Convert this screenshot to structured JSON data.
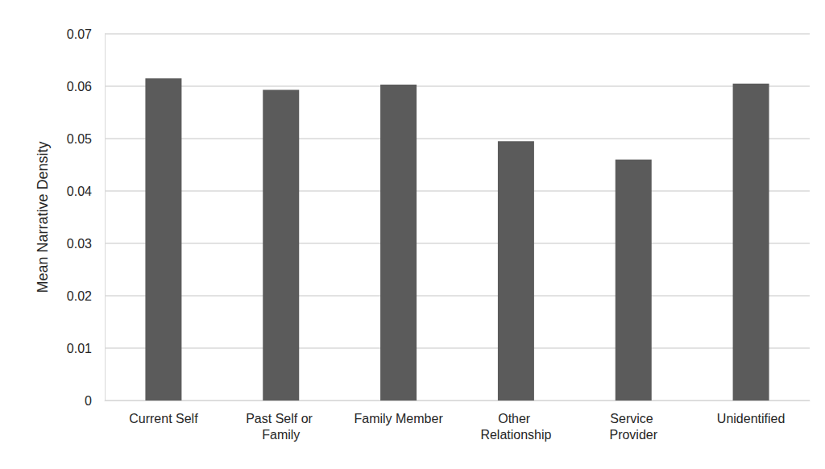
{
  "chart_data": {
    "type": "bar",
    "y_label": "Mean Narrative Density",
    "categories": [
      "Current Self",
      "Past Self or Family",
      "Family Member",
      "Other Relationship",
      "Service Provider",
      "Unidentified"
    ],
    "values": [
      0.0615,
      0.0593,
      0.0603,
      0.0495,
      0.046,
      0.0605
    ],
    "color": "#5b5b5b",
    "ylim": [
      0,
      0.07
    ],
    "yticks": [
      0,
      0.01,
      0.02,
      0.03,
      0.04,
      0.05,
      0.06,
      0.07
    ],
    "grid": true
  }
}
